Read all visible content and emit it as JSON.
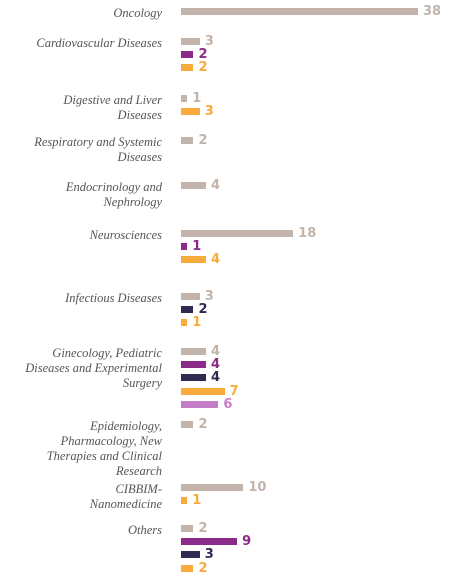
{
  "chart_data": {
    "type": "bar",
    "orientation": "horizontal",
    "categories": [
      "Oncology",
      "Cardiovascular Diseases",
      "Digestive and Liver\nDiseases",
      "Respiratory and Systemic\nDiseases",
      "Endocrinology and\nNephrology",
      "Neurosciences",
      "Infectious Diseases",
      "Ginecology, Pediatric\nDiseases and Experimental\nSurgery",
      "Epidemiology,\nPharmacology, New\nTherapies and Clinical\nResearch",
      "CIBBIM-\nNanomedicine",
      "Others"
    ],
    "series": [
      {
        "color": "#c2b4aa",
        "values": [
          38,
          3,
          1,
          2,
          4,
          18,
          3,
          4,
          2,
          10,
          2
        ]
      },
      {
        "color": "#8b2a88",
        "values": [
          null,
          2,
          null,
          null,
          null,
          1,
          null,
          4,
          null,
          null,
          9
        ]
      },
      {
        "color": "#2f2a50",
        "values": [
          null,
          null,
          null,
          null,
          null,
          null,
          2,
          4,
          null,
          null,
          3
        ]
      },
      {
        "color": "#f9aa3c",
        "values": [
          null,
          2,
          3,
          null,
          null,
          4,
          1,
          7,
          null,
          1,
          2
        ]
      },
      {
        "color": "#c57cc6",
        "values": [
          null,
          null,
          null,
          null,
          null,
          null,
          null,
          6,
          null,
          null,
          null
        ]
      }
    ]
  }
}
